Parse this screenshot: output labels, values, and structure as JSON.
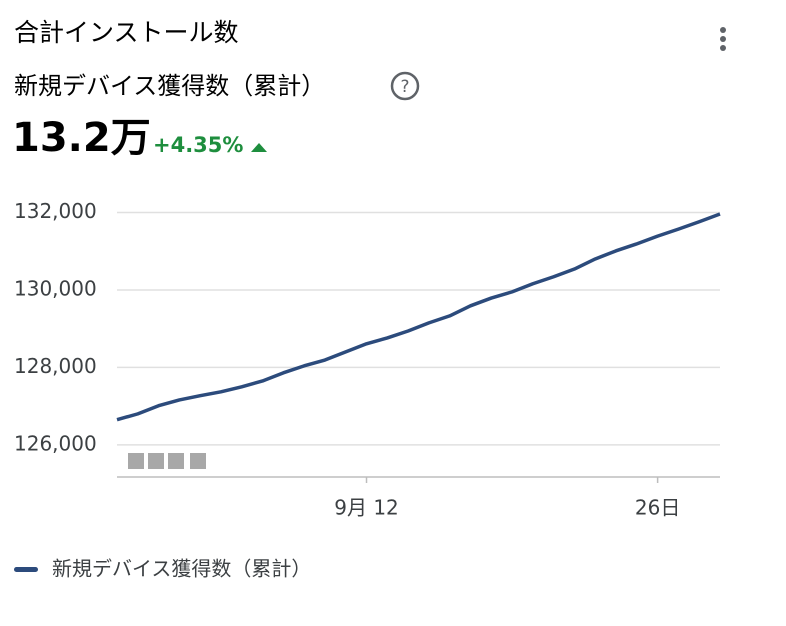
{
  "header": {
    "title": "合計インストール数",
    "metric": "新規デバイス獲得数（累計）",
    "value": "13.2万",
    "change": "+4.35%"
  },
  "chart_data": {
    "type": "line",
    "categories": [
      null,
      null,
      null,
      null,
      null,
      null,
      null,
      null,
      null,
      null,
      null,
      null,
      "9月 12",
      null,
      null,
      null,
      null,
      null,
      null,
      null,
      null,
      null,
      null,
      null,
      null,
      null,
      "26日",
      null,
      null,
      null
    ],
    "series": [
      {
        "name": "新規デバイス獲得数（累計）",
        "color": "#2c4b7c",
        "values": [
          126650,
          126800,
          127010,
          127160,
          127270,
          127370,
          127500,
          127650,
          127860,
          128040,
          128190,
          128400,
          128610,
          128760,
          128940,
          129150,
          129330,
          129590,
          129790,
          129950,
          130160,
          130340,
          130540,
          130800,
          131010,
          131190,
          131390,
          131570,
          131760,
          131960
        ]
      }
    ],
    "ylim": [
      125170,
      132600
    ],
    "yticks": [
      {
        "value": 126000,
        "label": "126,000"
      },
      {
        "value": 128000,
        "label": "128,000"
      },
      {
        "value": 130000,
        "label": "130,000"
      },
      {
        "value": 132000,
        "label": "132,000"
      }
    ],
    "grid": true
  }
}
